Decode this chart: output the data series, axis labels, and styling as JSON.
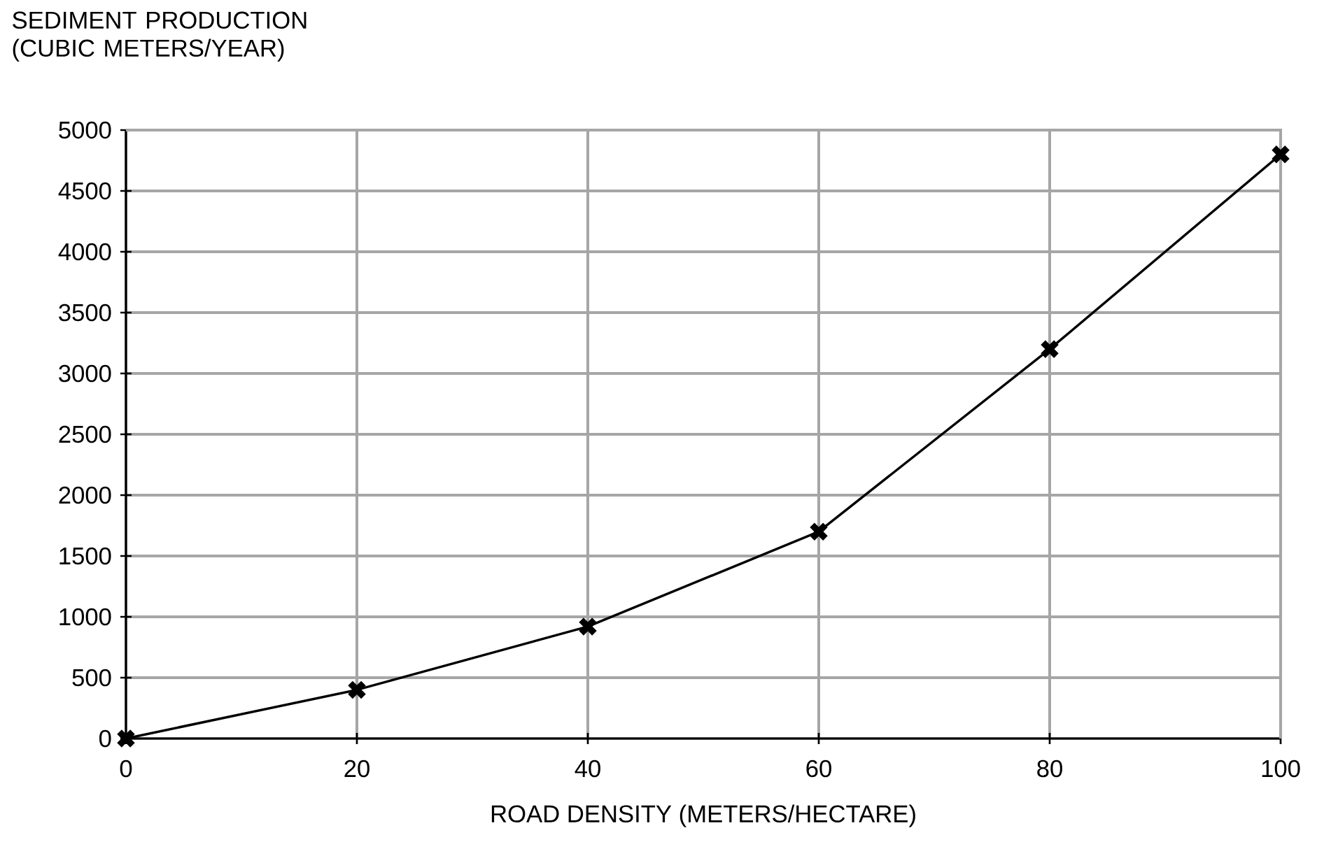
{
  "chart_data": {
    "type": "line",
    "ylabel": "SEDIMENT PRODUCTION (CUBIC METERS/YEAR)",
    "xlabel": "ROAD DENSITY  (METERS/HECTARE)",
    "x": [
      0,
      20,
      40,
      60,
      80,
      100
    ],
    "series": [
      {
        "color": "#000000",
        "values": [
          0,
          400,
          920,
          1700,
          3200,
          4800
        ]
      }
    ],
    "xlim": [
      0,
      100
    ],
    "xticks": [
      0,
      20,
      40,
      60,
      80,
      100
    ],
    "ylim": [
      0,
      5000
    ],
    "yticks": [
      0,
      500,
      1000,
      1500,
      2000,
      2500,
      3000,
      3500,
      4000,
      4500,
      5000
    ],
    "grid": true,
    "marker": "cross",
    "line_style": "solid"
  }
}
